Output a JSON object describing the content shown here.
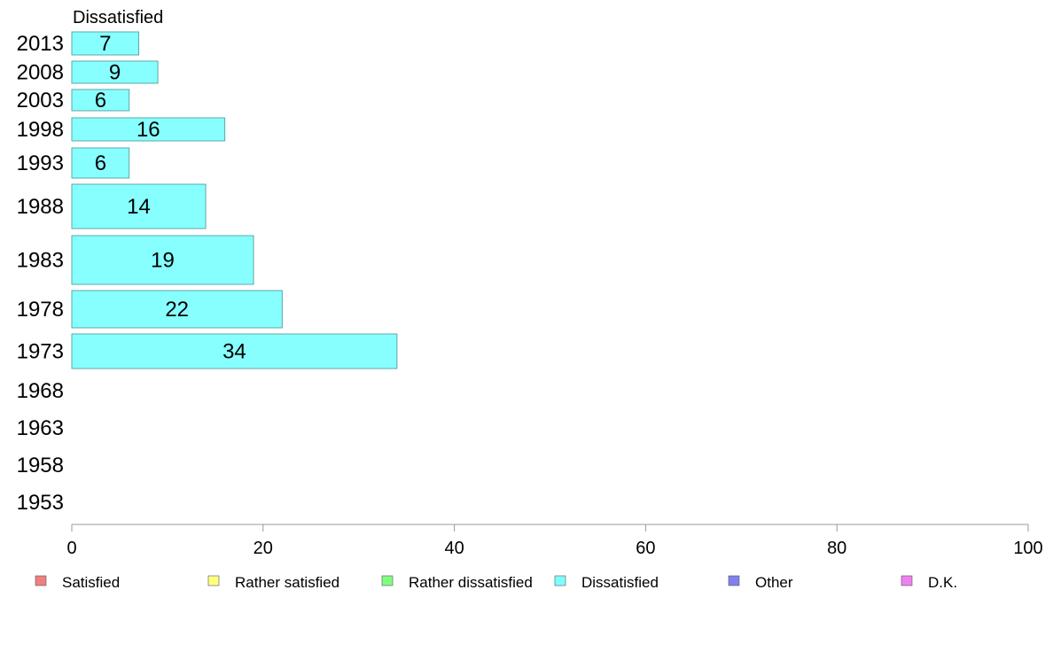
{
  "chart_data": {
    "type": "bar",
    "orientation": "horizontal",
    "title": "Dissatisfied",
    "categories": [
      "2013",
      "2008",
      "2003",
      "1998",
      "1993",
      "1988",
      "1983",
      "1978",
      "1973",
      "1968",
      "1963",
      "1958",
      "1953"
    ],
    "series": [
      {
        "name": "Dissatisfied",
        "values": [
          7,
          9,
          6,
          16,
          6,
          14,
          19,
          22,
          34,
          null,
          null,
          null,
          null
        ]
      }
    ],
    "xlim": [
      0,
      100
    ],
    "xticks": [
      0,
      20,
      40,
      60,
      80,
      100
    ],
    "grid": false,
    "legend_position": "bottom",
    "legend": [
      {
        "label": "Satisfied",
        "color": "#f08080"
      },
      {
        "label": "Rather satisfied",
        "color": "#ffff80"
      },
      {
        "label": "Rather dissatisfied",
        "color": "#80ff80"
      },
      {
        "label": "Dissatisfied",
        "color": "#80ffff"
      },
      {
        "label": "Other",
        "color": "#8080f0"
      },
      {
        "label": "D.K.",
        "color": "#f080f0"
      }
    ],
    "bar_color": "#88ffff",
    "bar_stroke": "#5aa8a8",
    "axis_color": "#999999"
  }
}
